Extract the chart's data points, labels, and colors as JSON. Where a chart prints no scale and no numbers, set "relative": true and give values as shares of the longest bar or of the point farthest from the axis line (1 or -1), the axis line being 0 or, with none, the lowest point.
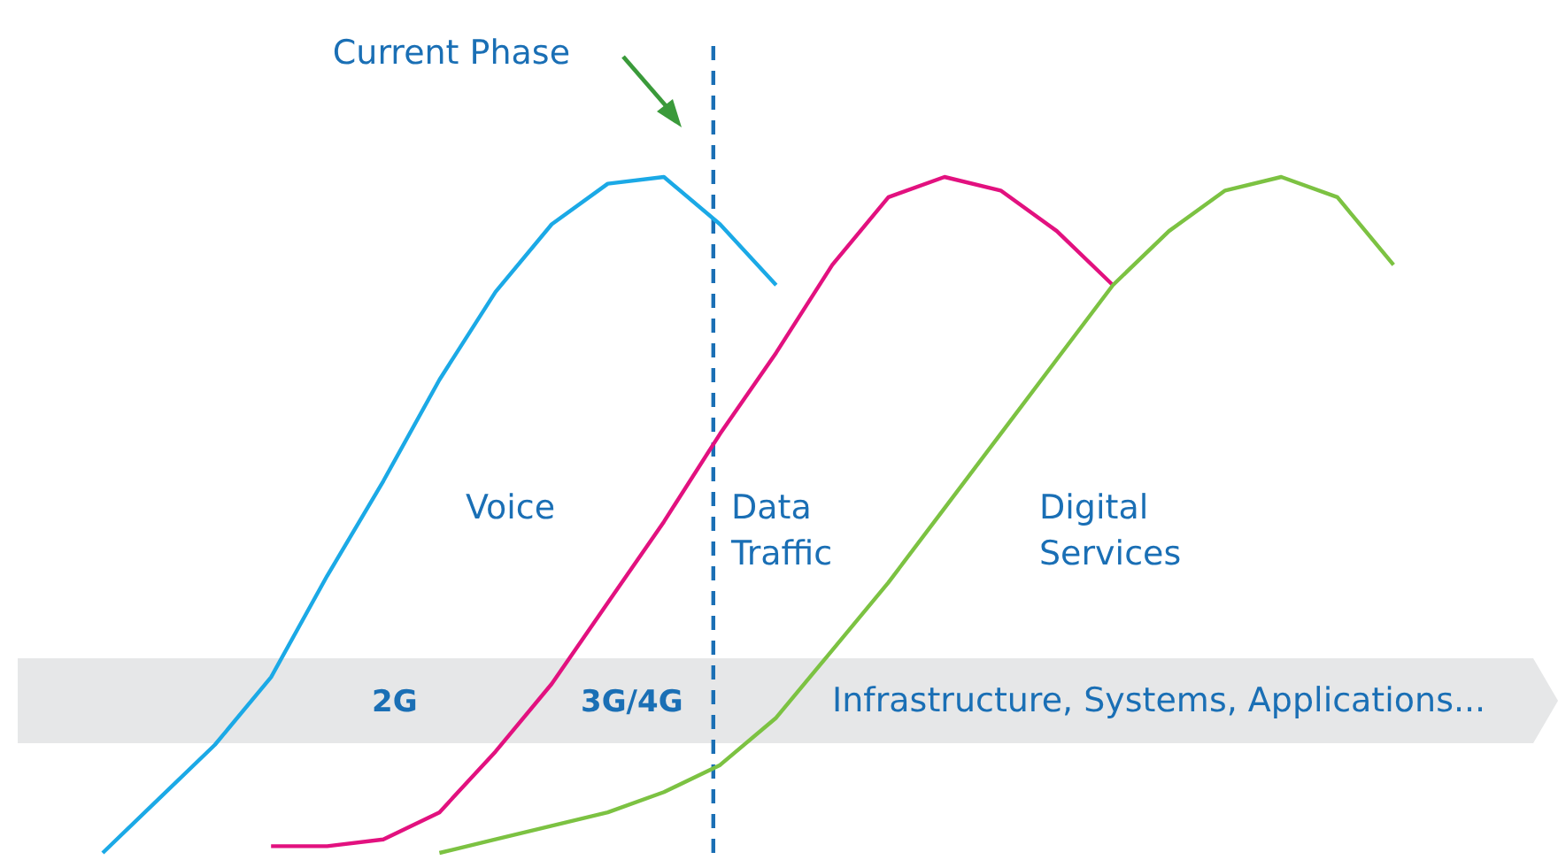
{
  "chart_data": {
    "type": "line",
    "relative": true,
    "marker": "none",
    "line_style": "solid",
    "categories": [
      null,
      null,
      null,
      null,
      null,
      null,
      null,
      null,
      null,
      null,
      null,
      null,
      null,
      null,
      null,
      null,
      null,
      null,
      null,
      null,
      null,
      null,
      null,
      null
    ],
    "series": [
      {
        "name": "Voice",
        "color": "#1ba9e6",
        "values": [
          0,
          0.08,
          0.16,
          0.26,
          0.41,
          0.55,
          0.7,
          0.83,
          0.93,
          0.99,
          1,
          0.93,
          0.84,
          null,
          null,
          null,
          null,
          null,
          null,
          null,
          null,
          null,
          null,
          null
        ]
      },
      {
        "name": "Data Traffic",
        "color": "#e2117f",
        "values": [
          null,
          null,
          null,
          0.01,
          0.01,
          0.02,
          0.06,
          0.15,
          0.25,
          0.37,
          0.49,
          0.62,
          0.74,
          0.87,
          0.97,
          1,
          0.98,
          0.92,
          0.84,
          null,
          null,
          null,
          null,
          null
        ]
      },
      {
        "name": "Digital Services",
        "color": "#7cc242",
        "values": [
          null,
          null,
          null,
          null,
          null,
          null,
          0,
          0.02,
          0.04,
          0.06,
          0.09,
          0.13,
          0.2,
          0.3,
          0.4,
          0.51,
          0.62,
          0.73,
          0.84,
          0.92,
          0.98,
          1,
          0.97,
          0.87
        ]
      }
    ],
    "ref_lines": [
      {
        "axis": "x",
        "label": "Current Phase",
        "color": "#1a6fb5",
        "line_style": "dashed"
      }
    ],
    "annotations": [
      "2G",
      "3G/4G",
      "Infrastructure, Systems, Applications..."
    ]
  }
}
